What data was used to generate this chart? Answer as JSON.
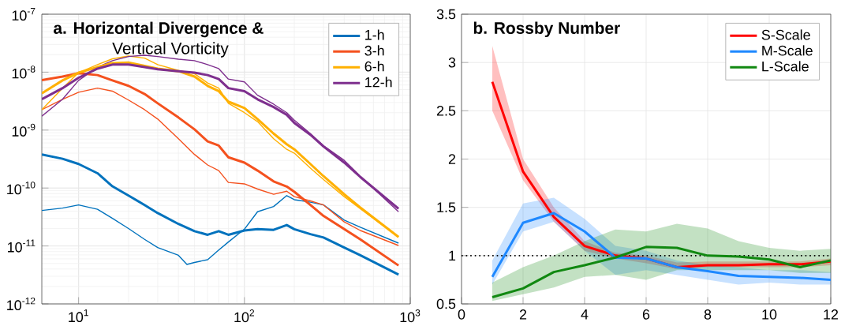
{
  "chart_data": [
    {
      "type": "line",
      "title": "a. Horizontal Divergence &",
      "subtitle": "Vertical Vorticity",
      "log": "xy",
      "xlim": [
        6,
        1000
      ],
      "ylim": [
        1e-12,
        1e-07
      ],
      "xticks": [
        {
          "value": 10,
          "label": "10$^{1}$"
        },
        {
          "value": 100,
          "label": "10$^{2}$"
        },
        {
          "value": 1000,
          "label": "10$^{3}$"
        }
      ],
      "yticks": [
        {
          "value": 1e-12,
          "label": "10$^{-12}$"
        },
        {
          "value": 1e-11,
          "label": "10$^{-11}$"
        },
        {
          "value": 1e-10,
          "label": "10$^{-10}$"
        },
        {
          "value": 1e-09,
          "label": "10$^{-9}$"
        },
        {
          "value": 1e-08,
          "label": "10$^{-8}$"
        },
        {
          "value": 1e-07,
          "label": "10$^{-7}$"
        }
      ],
      "grid": true,
      "legend": "top right",
      "x": [
        6,
        8,
        10,
        13,
        16,
        20,
        25,
        30,
        40,
        50,
        60,
        70,
        80,
        100,
        120,
        150,
        180,
        200,
        250,
        300,
        400,
        500,
        850
      ],
      "series": [
        {
          "name": "1-h",
          "color": "#0072bd",
          "values": [
            3.8e-10,
            3.2e-10,
            2.6e-10,
            1.8e-10,
            1.07e-10,
            7.4e-11,
            5.1e-11,
            3.7e-11,
            2.4e-11,
            1.8e-11,
            1.56e-11,
            1.8e-11,
            1.56e-11,
            1.85e-11,
            1.95e-11,
            1.9e-11,
            2.3e-11,
            1.95e-11,
            1.6e-11,
            1.4e-11,
            9.4e-12,
            6.9e-12,
            3.2e-12
          ]
        },
        {
          "color": "#0072bd",
          "x": [
            6,
            8,
            10,
            13,
            16,
            20,
            25,
            30,
            40,
            45,
            50,
            60,
            70,
            80,
            100,
            120,
            150,
            180,
            200,
            250,
            300,
            400,
            500,
            850
          ],
          "values": [
            4.1e-11,
            4.5e-11,
            5.1e-11,
            4.3e-11,
            3e-11,
            2e-11,
            1.3e-11,
            9.4e-12,
            6.9e-12,
            4.8e-12,
            5.2e-12,
            5.8e-12,
            8.5e-12,
            1.17e-11,
            1.95e-11,
            3.9e-11,
            4.8e-11,
            7.4e-11,
            6.3e-11,
            5.7e-11,
            5.1e-11,
            2.8e-11,
            2.1e-11,
            1.12e-11
          ]
        },
        {
          "name": "3-h",
          "color": "#f4511e",
          "values": [
            7.3e-09,
            8.4e-09,
            9.6e-09,
            8.9e-09,
            7.2e-09,
            5.8e-09,
            4.2e-09,
            2.9e-09,
            1.65e-09,
            1.03e-09,
            6.4e-10,
            5.4e-10,
            3.4e-10,
            2.75e-10,
            2e-10,
            1.3e-10,
            1.06e-10,
            8.6e-11,
            5.1e-11,
            3.3e-11,
            1.95e-11,
            1.3e-11,
            4.6e-12
          ]
        },
        {
          "color": "#f4511e",
          "values": [
            2.25e-09,
            3.4e-09,
            4.5e-09,
            5.3e-09,
            4.7e-09,
            3.3e-09,
            2.25e-09,
            1.55e-09,
            7.1e-10,
            3.8e-10,
            2.5e-10,
            2e-10,
            1.25e-10,
            1.18e-10,
            9.6e-11,
            7.8e-11,
            8.8e-11,
            7.1e-11,
            6e-11,
            5.1e-11,
            2.6e-11,
            1.85e-11,
            1.02e-11
          ]
        },
        {
          "name": "6-h",
          "color": "#ffb000",
          "values": [
            4.3e-09,
            7.2e-09,
            9.8e-09,
            1.22e-08,
            1.43e-08,
            1.47e-08,
            1.28e-08,
            1.15e-08,
            1.04e-08,
            8.4e-09,
            5.8e-09,
            4.7e-09,
            3.1e-09,
            2.4e-09,
            1.55e-09,
            8.7e-10,
            5.7e-10,
            4.65e-10,
            2.6e-10,
            1.6e-10,
            7.8e-11,
            4.6e-11,
            1.43e-11
          ]
        },
        {
          "color": "#ffb000",
          "values": [
            2.25e-09,
            5.3e-09,
            9.8e-09,
            1.35e-08,
            1.7e-08,
            1.9e-08,
            1.75e-08,
            1.35e-08,
            1.07e-08,
            9.4e-09,
            6.5e-09,
            5.3e-09,
            2.9e-09,
            2e-09,
            1.4e-09,
            7.1e-10,
            4.65e-10,
            4e-10,
            2.2e-10,
            1.4e-10,
            7.1e-11,
            4.4e-11,
            1.43e-11
          ]
        },
        {
          "name": "12-h",
          "color": "#7e2f8e",
          "values": [
            3.4e-09,
            5.3e-09,
            8e-09,
            1.15e-08,
            1.35e-08,
            1.35e-08,
            1.22e-08,
            1.12e-08,
            1.04e-08,
            9.8e-09,
            8.9e-09,
            7.6e-09,
            5.3e-09,
            4.7e-09,
            3.4e-09,
            2.5e-09,
            1.83e-09,
            1.33e-09,
            8.3e-10,
            5.2e-10,
            2.75e-10,
            1.55e-10,
            4.4e-11
          ]
        },
        {
          "color": "#7e2f8e",
          "values": [
            1.74e-09,
            3.4e-09,
            7.2e-09,
            1.22e-08,
            1.58e-08,
            1.86e-08,
            1.96e-08,
            1.86e-08,
            1.67e-08,
            1.58e-08,
            1.35e-08,
            1.15e-08,
            7.6e-09,
            6.8e-09,
            4e-09,
            2.8e-09,
            2e-09,
            1.48e-09,
            8.7e-10,
            5.4e-10,
            3e-10,
            1.6e-10,
            3.9e-11
          ]
        }
      ]
    },
    {
      "type": "line",
      "title": "b. Rossby Number",
      "xlim": [
        0,
        12
      ],
      "ylim": [
        0.5,
        3.5
      ],
      "xticks": [
        0,
        2,
        4,
        6,
        8,
        10,
        12
      ],
      "yticks": [
        0.5,
        1,
        1.5,
        2,
        2.5,
        3,
        3.5
      ],
      "grid": true,
      "legend": "top right",
      "ref_lines": [
        {
          "axis": "y",
          "value": 1,
          "color": "#000000",
          "line_style": "dotted"
        }
      ],
      "x": [
        1,
        2,
        3,
        4,
        5,
        6,
        7,
        8,
        9,
        10,
        11,
        12
      ],
      "series": [
        {
          "name": "S-Scale",
          "color": "#ff0000",
          "values": [
            2.8,
            1.87,
            1.4,
            1.1,
            1.0,
            0.97,
            0.88,
            0.9,
            0.9,
            0.91,
            0.91,
            0.94
          ],
          "lower": [
            2.5,
            1.78,
            1.35,
            1.05,
            0.97,
            0.92,
            0.86,
            0.88,
            0.88,
            0.88,
            0.88,
            0.9
          ],
          "upper": [
            3.17,
            2.0,
            1.5,
            1.15,
            1.03,
            1.0,
            0.93,
            0.94,
            0.94,
            0.94,
            0.94,
            0.97
          ]
        },
        {
          "name": "M-Scale",
          "color": "#1e88ff",
          "values": [
            0.78,
            1.34,
            1.44,
            1.25,
            0.98,
            0.97,
            0.88,
            0.84,
            0.79,
            0.78,
            0.77,
            0.75
          ],
          "lower": [
            0.7,
            1.25,
            1.35,
            1.05,
            0.8,
            0.85,
            0.8,
            0.75,
            0.7,
            0.72,
            0.7,
            0.7
          ],
          "upper": [
            0.95,
            1.54,
            1.6,
            1.38,
            1.1,
            1.05,
            0.95,
            0.9,
            0.88,
            0.85,
            0.85,
            0.83
          ]
        },
        {
          "name": "L-Scale",
          "color": "#118811",
          "values": [
            0.57,
            0.66,
            0.83,
            0.9,
            0.98,
            1.09,
            1.08,
            1.0,
            0.99,
            0.96,
            0.88,
            0.95
          ],
          "lower": [
            0.53,
            0.6,
            0.67,
            0.78,
            0.8,
            0.75,
            0.85,
            0.85,
            0.85,
            0.85,
            0.82,
            0.82
          ],
          "upper": [
            0.72,
            0.88,
            1.0,
            1.15,
            1.27,
            1.25,
            1.33,
            1.28,
            1.15,
            1.08,
            1.05,
            1.07
          ]
        }
      ]
    }
  ]
}
